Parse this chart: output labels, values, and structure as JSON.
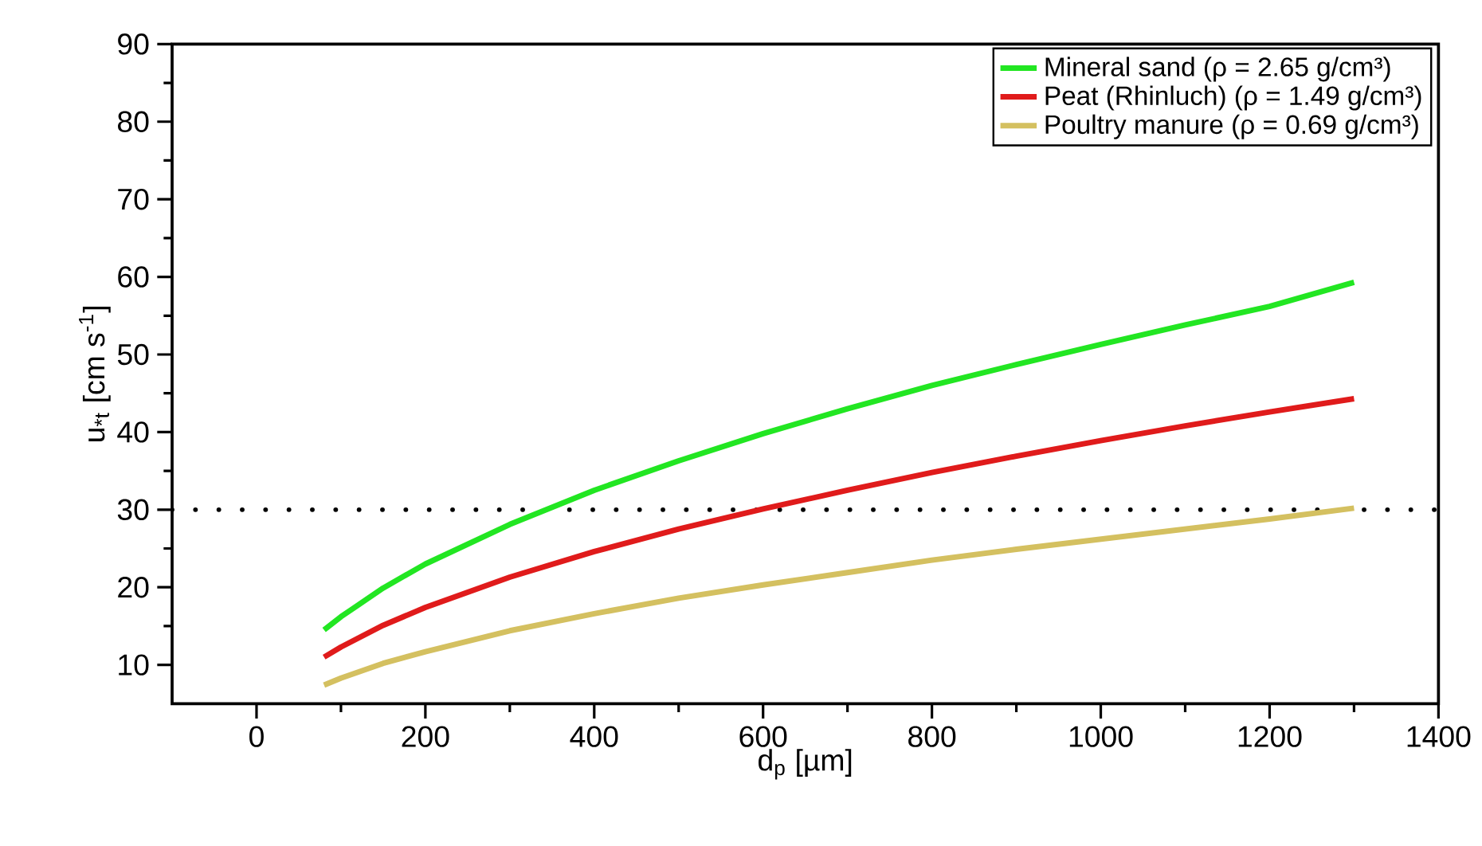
{
  "chart_data": {
    "type": "line",
    "xlabel": "d$_{p}$ [µm]",
    "ylabel": "u$_{*t}$ [cm s$^{-1}$]",
    "x": [
      80,
      100,
      150,
      200,
      300,
      400,
      500,
      600,
      700,
      800,
      900,
      1000,
      1100,
      1200,
      1300
    ],
    "series": [
      {
        "name": "Mineral sand (ρ = 2.65 g/cm³)",
        "color": "#22e622",
        "values": [
          14.5,
          16.2,
          19.9,
          23.0,
          28.1,
          32.5,
          36.3,
          39.8,
          43.0,
          46.0,
          48.7,
          51.3,
          53.8,
          56.2,
          59.3
        ]
      },
      {
        "name": "Peat (Rhinluch) (ρ = 1.49 g/cm³)",
        "color": "#e01b1b",
        "values": [
          11.0,
          12.3,
          15.1,
          17.4,
          21.3,
          24.6,
          27.5,
          30.1,
          32.5,
          34.8,
          36.9,
          38.9,
          40.8,
          42.6,
          44.3
        ]
      },
      {
        "name": "Poultry manure  (ρ = 0.69 g/cm³)",
        "color": "#d4c060",
        "values": [
          7.4,
          8.3,
          10.2,
          11.7,
          14.4,
          16.6,
          18.6,
          20.3,
          21.9,
          23.5,
          24.9,
          26.2,
          27.5,
          28.8,
          30.2
        ]
      }
    ],
    "xlim": [
      -100,
      1400
    ],
    "xticks": [
      0,
      200,
      400,
      600,
      800,
      1000,
      1200,
      1400
    ],
    "ylim": [
      5,
      90
    ],
    "yticks": [
      10,
      20,
      30,
      40,
      50,
      60,
      70,
      80,
      90
    ],
    "ref_lines": [
      {
        "axis": "y",
        "value": 30,
        "color": "#000000",
        "line_style": "dotted"
      }
    ],
    "legend": "top right",
    "grid": false,
    "marker": "none",
    "line_style": "solid"
  }
}
